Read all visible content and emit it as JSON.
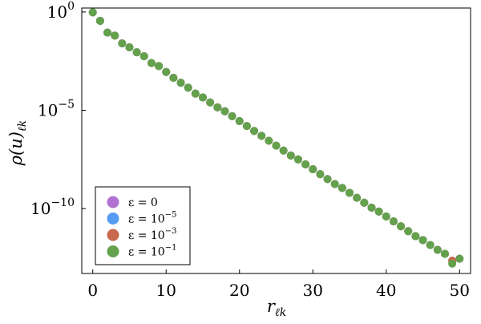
{
  "chart_data": {
    "type": "scatter",
    "xlabel": "r",
    "xlabel_sub": "ℓk",
    "ylabel": "ρ(u)",
    "ylabel_sub": "ℓk",
    "y_scale": "log",
    "xlim": [
      -1.5,
      51.5
    ],
    "ylim_log10": [
      -13.3,
      0.2
    ],
    "grid": false,
    "x_ticks": [
      {
        "value": 0,
        "label": "0"
      },
      {
        "value": 10,
        "label": "10"
      },
      {
        "value": 20,
        "label": "20"
      },
      {
        "value": 30,
        "label": "30"
      },
      {
        "value": 40,
        "label": "40"
      },
      {
        "value": 50,
        "label": "50"
      }
    ],
    "y_ticks": [
      {
        "log10": 0,
        "base": "10",
        "exp": "0"
      },
      {
        "log10": -5,
        "base": "10",
        "exp": "−5"
      },
      {
        "log10": -10,
        "base": "10",
        "exp": "−10"
      }
    ],
    "legend": {
      "position": "bottom-left",
      "entries": [
        {
          "base": "ε = 0",
          "exp": ""
        },
        {
          "base": "ε = 10",
          "exp": "−5"
        },
        {
          "base": "ε = 10",
          "exp": "−3"
        },
        {
          "base": "ε = 10",
          "exp": "−1"
        }
      ]
    },
    "colors": [
      "#b272d1",
      "#579bf4",
      "#c8694d",
      "#64a14d"
    ],
    "x": [
      0,
      1,
      2,
      3,
      4,
      5,
      6,
      7,
      8,
      9,
      10,
      11,
      12,
      13,
      14,
      15,
      16,
      17,
      18,
      19,
      20,
      21,
      22,
      23,
      24,
      25,
      26,
      27,
      28,
      29,
      30,
      31,
      32,
      33,
      34,
      35,
      36,
      37,
      38,
      39,
      40,
      41,
      42,
      43,
      44,
      45,
      46,
      47,
      48,
      49,
      50
    ],
    "series": [
      {
        "log10_values": [
          -0.02,
          -0.45,
          -1.05,
          -1.2,
          -1.6,
          -1.8,
          -2.05,
          -2.25,
          -2.6,
          -2.75,
          -3.05,
          -3.35,
          -3.6,
          -3.85,
          -4.15,
          -4.35,
          -4.6,
          -4.85,
          -5.05,
          -5.3,
          -5.55,
          -5.8,
          -6.05,
          -6.3,
          -6.55,
          -6.8,
          -7.05,
          -7.3,
          -7.5,
          -7.75,
          -8.0,
          -8.25,
          -8.5,
          -8.75,
          -8.95,
          -9.2,
          -9.45,
          -9.7,
          -9.95,
          -10.15,
          -10.4,
          -10.65,
          -10.9,
          -11.15,
          -11.4,
          -11.6,
          -11.85,
          -12.1,
          -12.3,
          -12.65,
          -12.55
        ]
      },
      {
        "log10_values": [
          -0.02,
          -0.45,
          -1.05,
          -1.2,
          -1.6,
          -1.8,
          -2.05,
          -2.25,
          -2.6,
          -2.75,
          -3.05,
          -3.35,
          -3.6,
          -3.85,
          -4.15,
          -4.35,
          -4.6,
          -4.85,
          -5.05,
          -5.3,
          -5.55,
          -5.8,
          -6.05,
          -6.3,
          -6.55,
          -6.8,
          -7.05,
          -7.3,
          -7.5,
          -7.75,
          -8.0,
          -8.25,
          -8.5,
          -8.75,
          -8.95,
          -9.2,
          -9.45,
          -9.7,
          -9.95,
          -10.15,
          -10.4,
          -10.65,
          -10.9,
          -11.15,
          -11.4,
          -11.6,
          -11.85,
          -12.1,
          -12.3,
          -12.65,
          -12.55
        ]
      },
      {
        "log10_values": [
          -0.02,
          -0.45,
          -1.05,
          -1.2,
          -1.6,
          -1.8,
          -2.05,
          -2.25,
          -2.6,
          -2.75,
          -3.05,
          -3.35,
          -3.6,
          -3.85,
          -4.15,
          -4.35,
          -4.6,
          -4.85,
          -5.05,
          -5.3,
          -5.55,
          -5.8,
          -6.05,
          -6.3,
          -6.55,
          -6.8,
          -7.05,
          -7.3,
          -7.5,
          -7.75,
          -8.0,
          -8.25,
          -8.5,
          -8.75,
          -8.95,
          -9.2,
          -9.45,
          -9.7,
          -9.95,
          -10.15,
          -10.4,
          -10.65,
          -10.9,
          -11.15,
          -11.4,
          -11.6,
          -11.85,
          -12.1,
          -12.3,
          -12.65,
          -12.55
        ]
      },
      {
        "log10_values": [
          -0.02,
          -0.45,
          -1.05,
          -1.2,
          -1.6,
          -1.8,
          -2.05,
          -2.25,
          -2.6,
          -2.75,
          -3.05,
          -3.35,
          -3.6,
          -3.85,
          -4.15,
          -4.35,
          -4.6,
          -4.85,
          -5.05,
          -5.3,
          -5.55,
          -5.8,
          -6.05,
          -6.3,
          -6.55,
          -6.8,
          -7.05,
          -7.3,
          -7.5,
          -7.75,
          -8.0,
          -8.25,
          -8.5,
          -8.75,
          -8.95,
          -9.2,
          -9.45,
          -9.7,
          -9.95,
          -10.15,
          -10.4,
          -10.65,
          -10.9,
          -11.15,
          -11.4,
          -11.6,
          -11.85,
          -12.1,
          -12.3,
          -12.8,
          -12.55
        ]
      }
    ]
  }
}
